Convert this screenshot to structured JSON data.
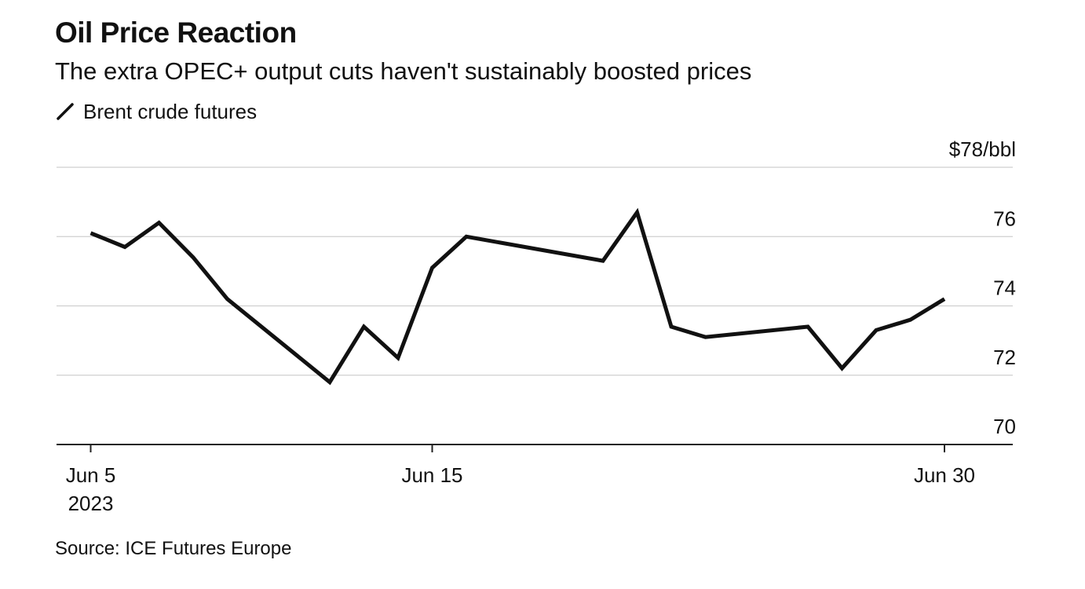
{
  "chart_data": {
    "type": "line",
    "title": "Oil Price Reaction",
    "subtitle": "The extra OPEC+ output cuts haven't sustainably boosted prices",
    "series": [
      {
        "name": "Brent crude futures",
        "color": "#111111",
        "x": [
          "2023-06-05",
          "2023-06-06",
          "2023-06-07",
          "2023-06-08",
          "2023-06-09",
          "2023-06-12",
          "2023-06-13",
          "2023-06-14",
          "2023-06-15",
          "2023-06-16",
          "2023-06-20",
          "2023-06-21",
          "2023-06-22",
          "2023-06-23",
          "2023-06-26",
          "2023-06-27",
          "2023-06-28",
          "2023-06-29",
          "2023-06-30"
        ],
        "values": [
          76.1,
          75.7,
          76.4,
          75.4,
          74.2,
          71.8,
          73.4,
          72.5,
          75.1,
          76.0,
          75.3,
          76.7,
          73.4,
          73.1,
          73.4,
          72.2,
          73.3,
          73.6,
          74.2
        ]
      }
    ],
    "y_ticks": [
      {
        "value": 78,
        "label": "$78/bbl"
      },
      {
        "value": 76,
        "label": "76"
      },
      {
        "value": 74,
        "label": "74"
      },
      {
        "value": 72,
        "label": "72"
      },
      {
        "value": 70,
        "label": "70"
      }
    ],
    "x_ticks": [
      {
        "date": "2023-06-05",
        "label": "Jun 5",
        "sublabel": "2023"
      },
      {
        "date": "2023-06-15",
        "label": "Jun 15",
        "sublabel": ""
      },
      {
        "date": "2023-06-30",
        "label": "Jun 30",
        "sublabel": ""
      }
    ],
    "ylim": [
      70,
      78
    ],
    "xlim": [
      "2023-06-04",
      "2023-07-02"
    ],
    "y_axis_side": "right",
    "grid": true,
    "source": "Source: ICE Futures Europe"
  }
}
